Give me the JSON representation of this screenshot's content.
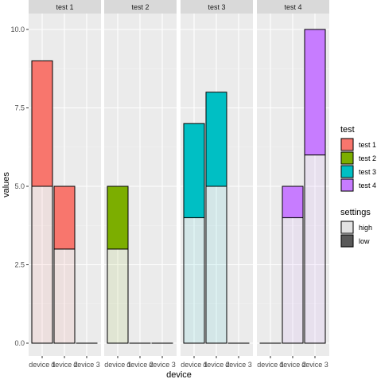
{
  "chart_data": {
    "type": "bar",
    "stacked": true,
    "faceted": true,
    "facet_var": "test",
    "facets": [
      "test 1",
      "test 2",
      "test 3",
      "test 4"
    ],
    "categories": [
      "device 1",
      "device 2",
      "device 3"
    ],
    "xlabel": "device",
    "ylabel": "values",
    "ylim": [
      0,
      10
    ],
    "yticks": [
      0.0,
      2.5,
      5.0,
      7.5,
      10.0
    ],
    "ytick_labels": [
      "0.0",
      "2.5",
      "5.0",
      "7.5",
      "10.0"
    ],
    "grid": true,
    "data": {
      "test 1": {
        "high": [
          5,
          3,
          0
        ],
        "low": [
          4,
          2,
          0
        ]
      },
      "test 2": {
        "high": [
          3,
          0,
          0
        ],
        "low": [
          2,
          0,
          0
        ]
      },
      "test 3": {
        "high": [
          4,
          5,
          0
        ],
        "low": [
          3,
          3,
          0
        ]
      },
      "test 4": {
        "high": [
          0,
          4,
          6
        ],
        "low": [
          0,
          1,
          4
        ]
      }
    },
    "legend_test": {
      "title": "test",
      "entries": [
        {
          "label": "test 1",
          "color": "#F8766D"
        },
        {
          "label": "test 2",
          "color": "#7CAE00"
        },
        {
          "label": "test 3",
          "color": "#00BFC4"
        },
        {
          "label": "test 4",
          "color": "#C77CFF"
        }
      ]
    },
    "legend_settings": {
      "title": "settings",
      "entries": [
        {
          "label": "high",
          "alpha": 0.1
        },
        {
          "label": "low",
          "alpha": 1.0
        }
      ]
    },
    "legend_placement": "right"
  }
}
